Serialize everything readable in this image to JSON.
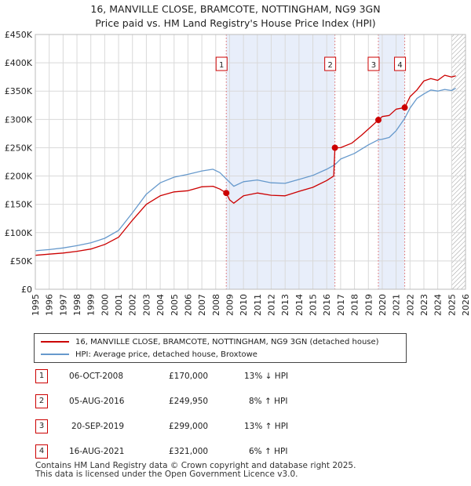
{
  "title": {
    "line1": "16, MANVILLE CLOSE, BRAMCOTE, NOTTINGHAM, NG9 3GN",
    "line2": "Price paid vs. HM Land Registry's House Price Index (HPI)"
  },
  "colors": {
    "property": "#cc0000",
    "hpi": "#6699cc",
    "shade": "#e8eefa"
  },
  "chart_data": {
    "type": "line",
    "xlim": [
      1995,
      2026
    ],
    "ylim": [
      0,
      450000
    ],
    "y_ticks": [
      {
        "value": 0,
        "label": "£0"
      },
      {
        "value": 50000,
        "label": "£50K"
      },
      {
        "value": 100000,
        "label": "£100K"
      },
      {
        "value": 150000,
        "label": "£150K"
      },
      {
        "value": 200000,
        "label": "£200K"
      },
      {
        "value": 250000,
        "label": "£250K"
      },
      {
        "value": 300000,
        "label": "£300K"
      },
      {
        "value": 350000,
        "label": "£350K"
      },
      {
        "value": 400000,
        "label": "£400K"
      },
      {
        "value": 450000,
        "label": "£450K"
      }
    ],
    "x_ticks": [
      "1995",
      "1996",
      "1997",
      "1998",
      "1999",
      "2000",
      "2001",
      "2002",
      "2003",
      "2004",
      "2005",
      "2006",
      "2007",
      "2008",
      "2009",
      "2010",
      "2011",
      "2012",
      "2013",
      "2014",
      "2015",
      "2016",
      "2017",
      "2018",
      "2019",
      "2020",
      "2021",
      "2022",
      "2023",
      "2024",
      "2025",
      "2026"
    ],
    "shaded_ranges": [
      [
        2008.76,
        2016.59
      ],
      [
        2019.72,
        2021.62
      ]
    ],
    "future_hatch_from": 2025.0,
    "series": [
      {
        "name": "16, MANVILLE CLOSE, BRAMCOTE, NOTTINGHAM, NG9 3GN (detached house)",
        "x": [
          1995,
          1996,
          1997,
          1998,
          1999,
          2000,
          2001,
          2002,
          2003,
          2004,
          2005,
          2006,
          2007,
          2007.8,
          2008.3,
          2008.76,
          2009.0,
          2009.3,
          2010,
          2011,
          2012,
          2013,
          2014,
          2015,
          2016,
          2016.5,
          2016.59,
          2017,
          2017.8,
          2018.5,
          2019,
          2019.72,
          2020,
          2020.5,
          2021,
          2021.62,
          2022,
          2022.5,
          2023,
          2023.5,
          2024,
          2024.5,
          2025.0,
          2025.3
        ],
        "values": [
          60000,
          62000,
          64000,
          67000,
          71000,
          79000,
          92000,
          122000,
          150000,
          165000,
          172000,
          174000,
          181000,
          182000,
          177000,
          170000,
          158000,
          152000,
          165000,
          170000,
          166000,
          165000,
          173000,
          180000,
          192000,
          200000,
          249950,
          250000,
          258000,
          272000,
          283000,
          299000,
          305000,
          307000,
          318000,
          321000,
          340000,
          352000,
          368000,
          372000,
          369000,
          378000,
          375000,
          377000
        ]
      },
      {
        "name": "HPI: Average price, detached house, Broxtowe",
        "x": [
          1995,
          1996,
          1997,
          1998,
          1999,
          2000,
          2001,
          2002,
          2003,
          2004,
          2005,
          2006,
          2007,
          2007.8,
          2008.3,
          2008.76,
          2009.3,
          2010,
          2011,
          2012,
          2013,
          2014,
          2015,
          2016,
          2016.59,
          2017,
          2018,
          2019,
          2019.72,
          2020,
          2020.5,
          2021,
          2021.62,
          2022,
          2022.5,
          2023,
          2023.5,
          2024,
          2024.5,
          2025.0,
          2025.3
        ],
        "values": [
          68000,
          70000,
          73000,
          77000,
          82000,
          90000,
          104000,
          135000,
          168000,
          188000,
          198000,
          203000,
          209000,
          212000,
          206000,
          195000,
          182000,
          190000,
          193000,
          188000,
          187000,
          194000,
          201000,
          212000,
          220000,
          230000,
          240000,
          255000,
          264000,
          265000,
          268000,
          280000,
          302000,
          320000,
          337000,
          345000,
          352000,
          350000,
          353000,
          351000,
          355000
        ]
      }
    ],
    "sales": [
      {
        "n": "1",
        "x": 2008.76,
        "price": 170000
      },
      {
        "n": "2",
        "x": 2016.59,
        "price": 249950
      },
      {
        "n": "3",
        "x": 2019.72,
        "price": 299000
      },
      {
        "n": "4",
        "x": 2021.62,
        "price": 321000
      }
    ]
  },
  "legend": {
    "property": "16, MANVILLE CLOSE, BRAMCOTE, NOTTINGHAM, NG9 3GN (detached house)",
    "hpi": "HPI: Average price, detached house, Broxtowe"
  },
  "sales_table": [
    {
      "n": "1",
      "date": "06-OCT-2008",
      "price": "£170,000",
      "hpi": "13% ↓ HPI"
    },
    {
      "n": "2",
      "date": "05-AUG-2016",
      "price": "£249,950",
      "hpi": "8% ↑ HPI"
    },
    {
      "n": "3",
      "date": "20-SEP-2019",
      "price": "£299,000",
      "hpi": "13% ↑ HPI"
    },
    {
      "n": "4",
      "date": "16-AUG-2021",
      "price": "£321,000",
      "hpi": "6% ↑ HPI"
    }
  ],
  "footer": {
    "line1": "Contains HM Land Registry data © Crown copyright and database right 2025.",
    "line2": "This data is licensed under the Open Government Licence v3.0."
  }
}
